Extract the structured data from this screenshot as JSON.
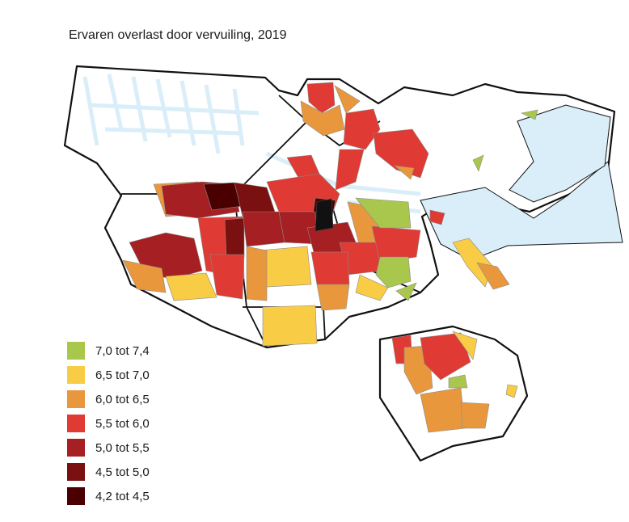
{
  "title": "Ervaren overlast door vervuiling, 2019",
  "legend": [
    {
      "label": "7,0 tot 7,4",
      "color": "#a9c74c"
    },
    {
      "label": "6,5 tot 7,0",
      "color": "#f9cc46"
    },
    {
      "label": "6,0 tot 6,5",
      "color": "#e9973d"
    },
    {
      "label": "5,5 tot 6,0",
      "color": "#df3a34"
    },
    {
      "label": "5,0 tot 5,5",
      "color": "#a61f22"
    },
    {
      "label": "4,5 tot 5,0",
      "color": "#7a1010"
    },
    {
      "label": "4,2 tot 4,5",
      "color": "#4a0000"
    }
  ]
}
